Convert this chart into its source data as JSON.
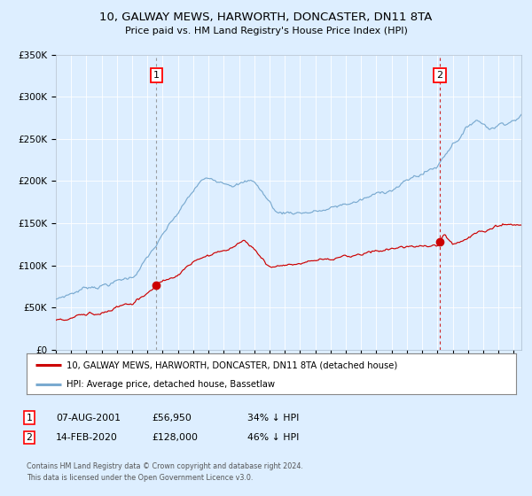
{
  "title_line1": "10, GALWAY MEWS, HARWORTH, DONCASTER, DN11 8TA",
  "title_line2": "Price paid vs. HM Land Registry's House Price Index (HPI)",
  "legend_label_red": "10, GALWAY MEWS, HARWORTH, DONCASTER, DN11 8TA (detached house)",
  "legend_label_blue": "HPI: Average price, detached house, Bassetlaw",
  "annotation1_date": "07-AUG-2001",
  "annotation1_price": "£56,950",
  "annotation1_hpi": "34% ↓ HPI",
  "annotation2_date": "14-FEB-2020",
  "annotation2_price": "£128,000",
  "annotation2_hpi": "46% ↓ HPI",
  "footer": "Contains HM Land Registry data © Crown copyright and database right 2024.\nThis data is licensed under the Open Government Licence v3.0.",
  "ylim": [
    0,
    350000
  ],
  "y_ticks": [
    0,
    50000,
    100000,
    150000,
    200000,
    250000,
    300000,
    350000
  ],
  "y_tick_labels": [
    "£0",
    "£50K",
    "£100K",
    "£150K",
    "£200K",
    "£250K",
    "£300K",
    "£350K"
  ],
  "sale1_year": 2001.58,
  "sale1_value": 56950,
  "sale2_year": 2020.12,
  "sale2_value": 128000,
  "red_color": "#cc0000",
  "blue_color": "#7aaad0",
  "background_color": "#ddeeff",
  "plot_bg_color": "#ddeeff",
  "grid_color": "#ffffff"
}
